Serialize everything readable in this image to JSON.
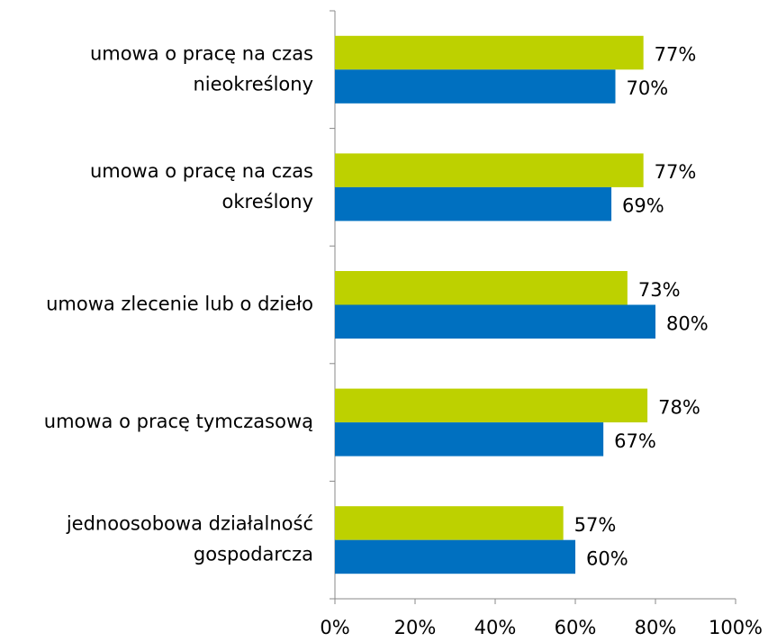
{
  "chart_data": {
    "type": "barh",
    "categories": [
      [
        "umowa o pracę na czas",
        "nieokreślony"
      ],
      [
        "umowa o pracę na czas",
        "określony"
      ],
      [
        "umowa zlecenie lub o dzieło"
      ],
      [
        "umowa o pracę tymczasową"
      ],
      [
        "jednoosobowa działalność",
        "gospodarcza"
      ]
    ],
    "series": [
      {
        "color": "#bdd100",
        "values": [
          77,
          77,
          73,
          78,
          57
        ],
        "value_labels": [
          "77%",
          "77%",
          "73%",
          "78%",
          "57%"
        ]
      },
      {
        "color": "#0070c0",
        "values": [
          70,
          69,
          80,
          67,
          60
        ],
        "value_labels": [
          "70%",
          "69%",
          "80%",
          "67%",
          "60%"
        ]
      }
    ],
    "xlim": [
      0,
      100
    ],
    "xticks": [
      {
        "value": 0,
        "label": "0%"
      },
      {
        "value": 20,
        "label": "20%"
      },
      {
        "value": 40,
        "label": "40%"
      },
      {
        "value": 60,
        "label": "60%"
      },
      {
        "value": 80,
        "label": "80%"
      },
      {
        "value": 100,
        "label": "100%"
      }
    ],
    "grid": false
  }
}
